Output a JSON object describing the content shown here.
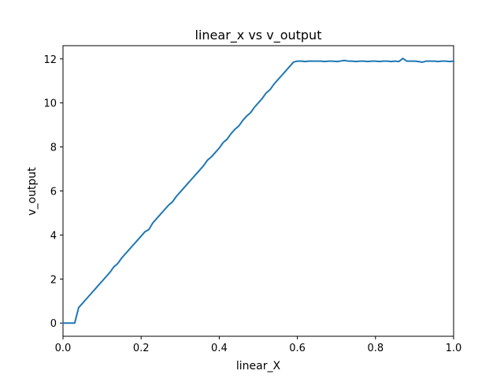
{
  "chart_data": {
    "type": "line",
    "title": "linear_x vs v_output",
    "xlabel": "linear_X",
    "ylabel": "v_output",
    "xlim": [
      0.0,
      1.0
    ],
    "ylim": [
      -0.6,
      12.6
    ],
    "xticks": [
      0.0,
      0.2,
      0.4,
      0.6,
      0.8,
      1.0
    ],
    "xtick_labels": [
      "0.0",
      "0.2",
      "0.4",
      "0.6",
      "0.8",
      "1.0"
    ],
    "yticks": [
      0,
      2,
      4,
      6,
      8,
      10,
      12
    ],
    "ytick_labels": [
      "0",
      "2",
      "4",
      "6",
      "8",
      "10",
      "12"
    ],
    "grid": false,
    "line_color": "#1f77b4",
    "series": [
      {
        "x": [
          0.0,
          0.01,
          0.02,
          0.03,
          0.04,
          0.05,
          0.06,
          0.07,
          0.08,
          0.09,
          0.1,
          0.11,
          0.12,
          0.13,
          0.14,
          0.15,
          0.16,
          0.17,
          0.18,
          0.19,
          0.2,
          0.21,
          0.22,
          0.23,
          0.24,
          0.25,
          0.26,
          0.27,
          0.28,
          0.29,
          0.3,
          0.31,
          0.32,
          0.33,
          0.34,
          0.35,
          0.36,
          0.37,
          0.38,
          0.39,
          0.4,
          0.41,
          0.42,
          0.43,
          0.44,
          0.45,
          0.46,
          0.47,
          0.48,
          0.49,
          0.5,
          0.51,
          0.52,
          0.53,
          0.54,
          0.55,
          0.56,
          0.57,
          0.58,
          0.59,
          0.6,
          0.61,
          0.62,
          0.63,
          0.64,
          0.65,
          0.66,
          0.67,
          0.68,
          0.69,
          0.7,
          0.71,
          0.72,
          0.73,
          0.74,
          0.75,
          0.76,
          0.77,
          0.78,
          0.79,
          0.8,
          0.81,
          0.82,
          0.83,
          0.84,
          0.85,
          0.86,
          0.87,
          0.88,
          0.89,
          0.9,
          0.91,
          0.92,
          0.93,
          0.94,
          0.95,
          0.96,
          0.97,
          0.98,
          0.99,
          1.0
        ],
        "values": [
          0.0,
          0.0,
          0.0,
          0.0,
          0.7,
          0.9,
          1.1,
          1.3,
          1.5,
          1.7,
          1.9,
          2.1,
          2.3,
          2.55,
          2.7,
          2.95,
          3.15,
          3.35,
          3.55,
          3.75,
          3.95,
          4.15,
          4.25,
          4.55,
          4.75,
          4.95,
          5.15,
          5.35,
          5.5,
          5.75,
          5.95,
          6.15,
          6.35,
          6.55,
          6.75,
          6.95,
          7.15,
          7.4,
          7.55,
          7.75,
          7.95,
          8.2,
          8.35,
          8.6,
          8.8,
          8.95,
          9.2,
          9.4,
          9.55,
          9.8,
          10.0,
          10.2,
          10.45,
          10.6,
          10.85,
          11.05,
          11.25,
          11.45,
          11.65,
          11.85,
          11.9,
          11.9,
          11.88,
          11.9,
          11.9,
          11.9,
          11.9,
          11.88,
          11.9,
          11.9,
          11.88,
          11.9,
          11.93,
          11.9,
          11.9,
          11.88,
          11.9,
          11.9,
          11.88,
          11.9,
          11.9,
          11.88,
          11.9,
          11.9,
          11.88,
          11.9,
          11.88,
          12.02,
          11.9,
          11.9,
          11.9,
          11.88,
          11.85,
          11.9,
          11.9,
          11.9,
          11.88,
          11.9,
          11.9,
          11.88,
          11.9
        ]
      }
    ]
  }
}
